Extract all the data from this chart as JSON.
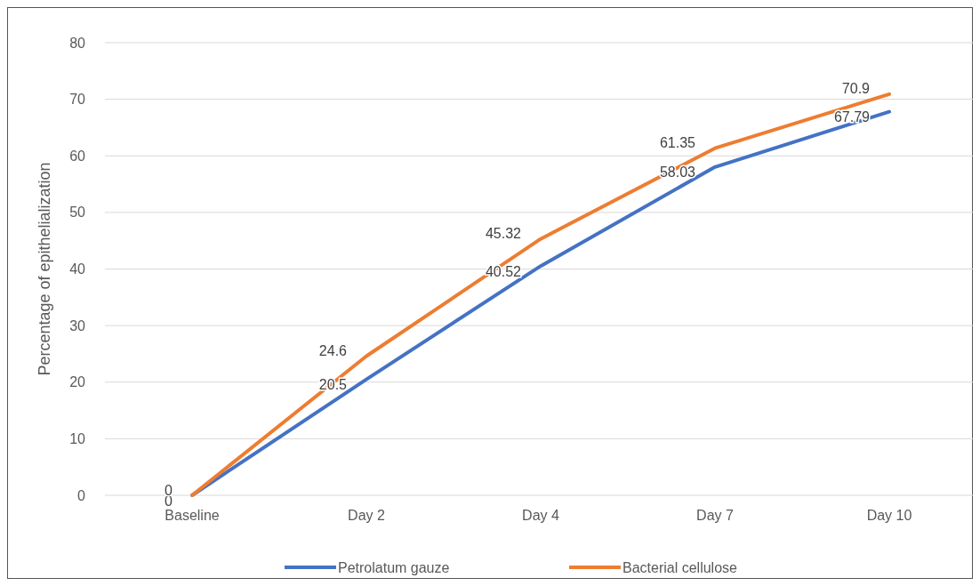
{
  "chart_data": {
    "type": "line",
    "ylabel": "Percentage of epithelialization",
    "categories": [
      "Baseline",
      "Day 2",
      "Day 4",
      "Day 7",
      "Day 10"
    ],
    "series": [
      {
        "name": "Petrolatum gauze",
        "color": "#4472c4",
        "values": [
          0,
          20.5,
          40.52,
          58.03,
          67.79
        ]
      },
      {
        "name": "Bacterial cellulose",
        "color": "#ed7d31",
        "values": [
          0,
          24.6,
          45.32,
          61.35,
          70.9
        ]
      }
    ],
    "ylim": [
      0,
      80
    ],
    "yticks": [
      0,
      10,
      20,
      30,
      40,
      50,
      60,
      70,
      80
    ],
    "grid": "y",
    "legend": "bottom",
    "data_labels": true,
    "marker": "none",
    "line_style": "solid"
  }
}
